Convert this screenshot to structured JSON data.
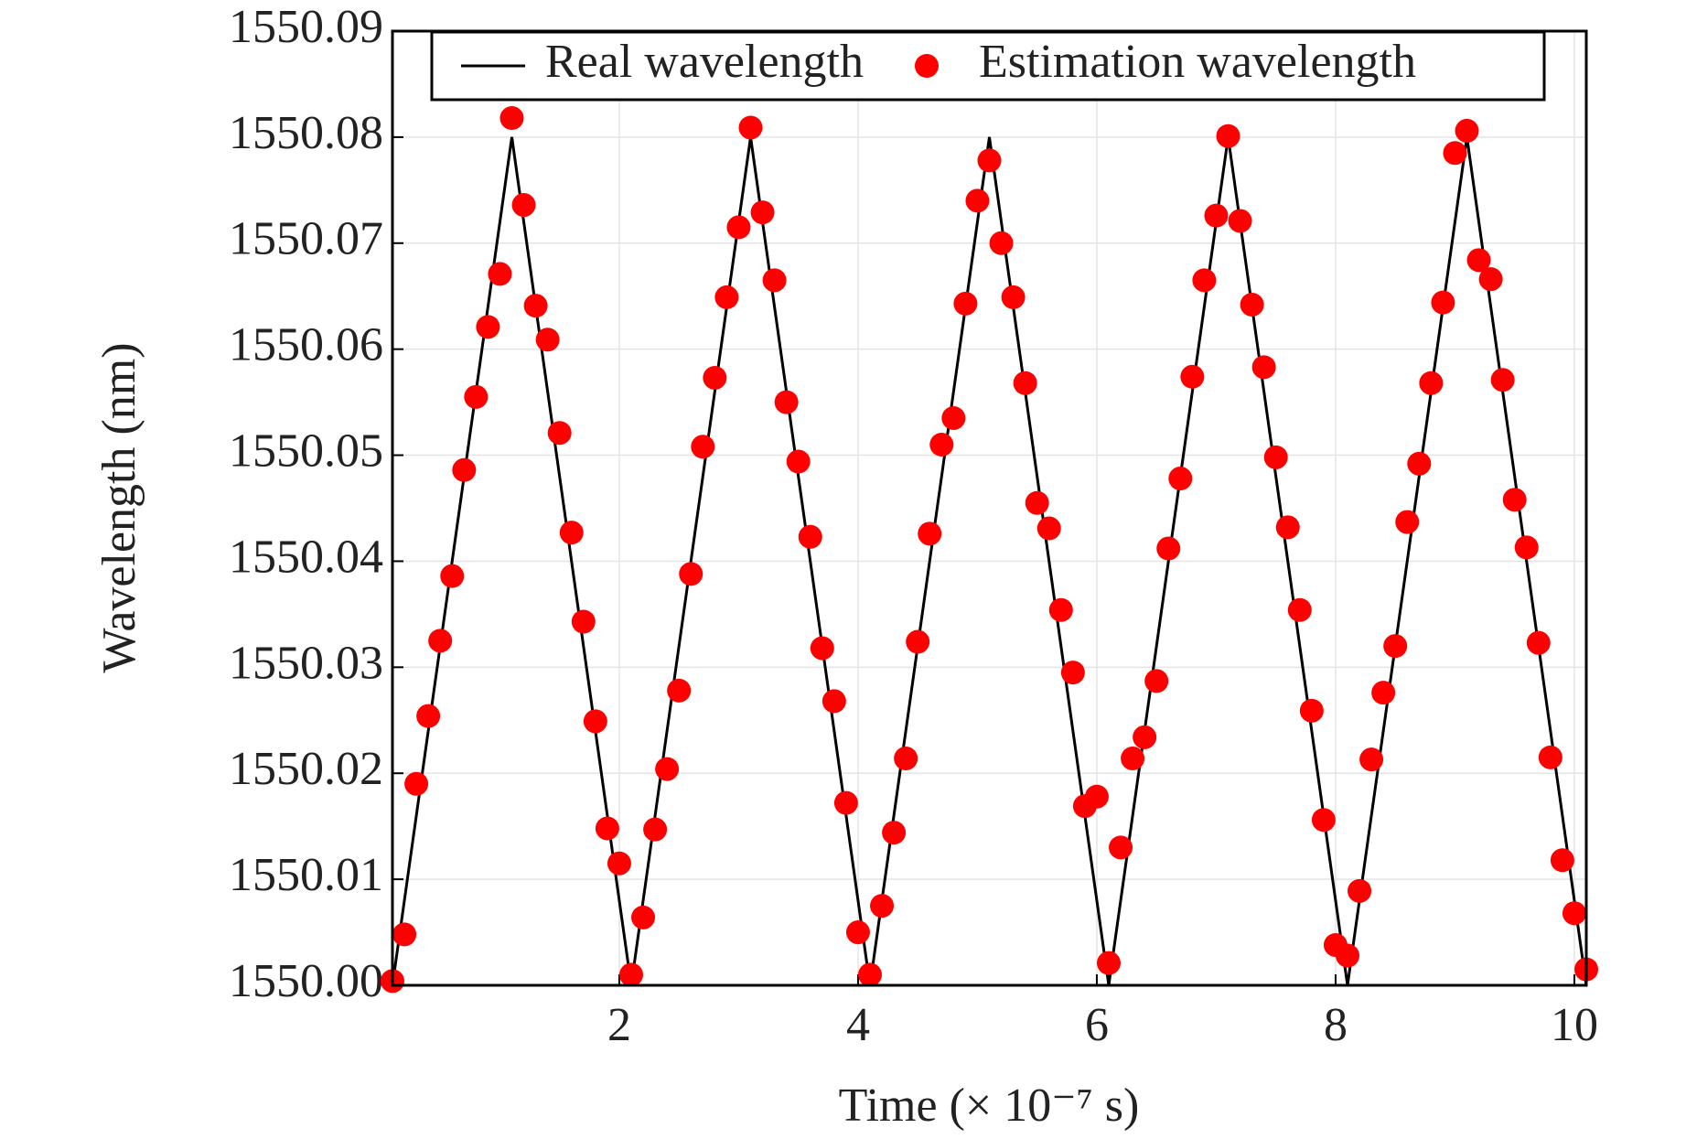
{
  "chart_data": {
    "type": "line",
    "xlabel": "Time (× 10⁻⁷ s)",
    "ylabel": "Wavelength (nm)",
    "xlim": [
      0.1,
      10.1
    ],
    "xticks": [
      2,
      4,
      6,
      8,
      10
    ],
    "ylim": [
      1550,
      1550.09
    ],
    "yticks": [
      {
        "value": 1550,
        "label": "1550.00"
      },
      1550.01,
      1550.02,
      1550.03,
      1550.04,
      1550.05,
      1550.06,
      1550.07,
      1550.08,
      1550.09
    ],
    "grid": true,
    "legend": "top",
    "series": [
      {
        "name": "Real wavelength",
        "type": "line",
        "color": "#000000",
        "x": [
          0.1,
          1.1,
          2.1,
          3.1,
          4.1,
          5.1,
          6.1,
          7.1,
          8.1,
          9.1,
          10.1
        ],
        "values": [
          1550,
          1550.08,
          1550,
          1550.08,
          1550,
          1550.08,
          1550,
          1550.08,
          1550,
          1550.08,
          1550
        ]
      },
      {
        "name": "Estimation wavelength",
        "type": "scatter",
        "color": "#ff0000",
        "x": [
          0.1,
          0.2,
          0.3,
          0.4,
          0.5,
          0.6,
          0.7,
          0.8,
          0.9,
          1.0,
          1.1,
          1.2,
          1.3,
          1.4,
          1.5,
          1.6,
          1.7,
          1.8,
          1.9,
          2.0,
          2.1,
          2.2,
          2.3,
          2.4,
          2.5,
          2.6,
          2.7,
          2.8,
          2.9,
          3.0,
          3.1,
          3.2,
          3.3,
          3.4,
          3.5,
          3.6,
          3.7,
          3.8,
          3.9,
          4.0,
          4.1,
          4.2,
          4.3,
          4.4,
          4.5,
          4.6,
          4.7,
          4.8,
          4.9,
          5.0,
          5.1,
          5.2,
          5.3,
          5.4,
          5.5,
          5.6,
          5.7,
          5.8,
          5.9,
          6.0,
          6.1,
          6.2,
          6.3,
          6.4,
          6.5,
          6.6,
          6.7,
          6.8,
          6.9,
          7.0,
          7.1,
          7.2,
          7.3,
          7.4,
          7.5,
          7.6,
          7.7,
          7.8,
          7.9,
          8.0,
          8.1,
          8.2,
          8.3,
          8.4,
          8.5,
          8.6,
          8.7,
          8.8,
          8.9,
          9.0,
          9.1,
          9.2,
          9.3,
          9.4,
          9.5,
          9.6,
          9.7,
          9.8,
          9.9,
          10.0,
          10.1
        ],
        "values": [
          1550.0004,
          1550.0048,
          1550.019,
          1550.0254,
          1550.0325,
          1550.0386,
          1550.0486,
          1550.0555,
          1550.0621,
          1550.0671,
          1550.0818,
          1550.0736,
          1550.0641,
          1550.0609,
          1550.0521,
          1550.0427,
          1550.0343,
          1550.0249,
          1550.0148,
          1550.0115,
          1550.001,
          1550.0064,
          1550.0147,
          1550.0204,
          1550.0278,
          1550.0388,
          1550.0508,
          1550.0573,
          1550.0649,
          1550.0715,
          1550.0809,
          1550.0729,
          1550.0665,
          1550.055,
          1550.0494,
          1550.0423,
          1550.0318,
          1550.0268,
          1550.0172,
          1550.005,
          1550.001,
          1550.0075,
          1550.0144,
          1550.0214,
          1550.0324,
          1550.0426,
          1550.051,
          1550.0535,
          1550.0643,
          1550.074,
          1550.0778,
          1550.07,
          1550.0649,
          1550.0568,
          1550.0455,
          1550.0431,
          1550.0354,
          1550.0295,
          1550.0169,
          1550.0178,
          1550.0021,
          1550.013,
          1550.0214,
          1550.0234,
          1550.0287,
          1550.0412,
          1550.0478,
          1550.0574,
          1550.0665,
          1550.0726,
          1550.0801,
          1550.0721,
          1550.0642,
          1550.0583,
          1550.0498,
          1550.0432,
          1550.0354,
          1550.0259,
          1550.0156,
          1550.0038,
          1550.0028,
          1550.0089,
          1550.0213,
          1550.0276,
          1550.032,
          1550.0437,
          1550.0492,
          1550.0568,
          1550.0644,
          1550.0785,
          1550.0806,
          1550.0684,
          1550.0666,
          1550.0571,
          1550.0458,
          1550.0413,
          1550.0323,
          1550.0215,
          1550.0118,
          1550.0068,
          1550.0015
        ]
      }
    ]
  }
}
